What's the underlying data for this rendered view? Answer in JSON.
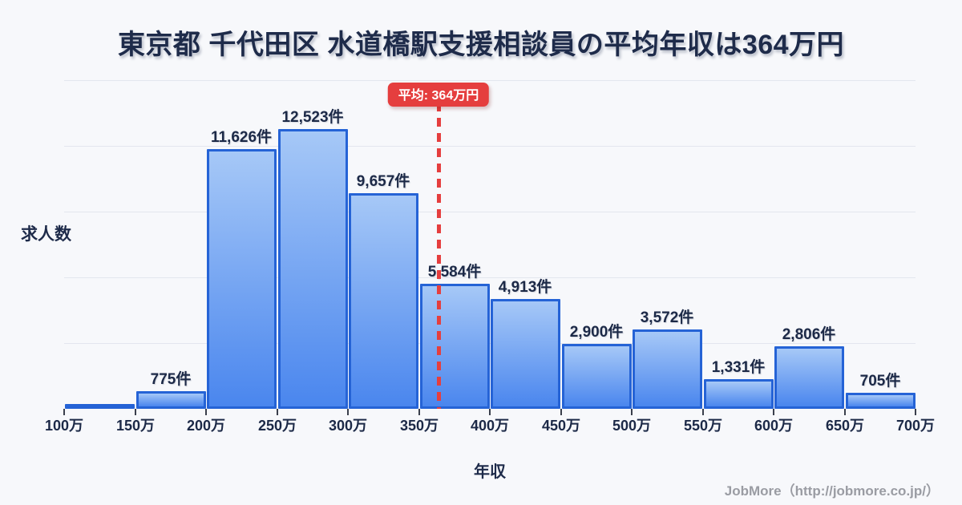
{
  "title": "東京都 千代田区 水道橋駅支援相談員の平均年収は364万円",
  "y_axis_label": "求人数",
  "x_axis_label": "年収",
  "footer_credit": "JobMore（http://jobmore.co.jp/）",
  "average_badge_label": "平均: 364万円",
  "colors": {
    "background": "#f7f8fb",
    "title_text": "#1e2b4a",
    "bar_fill_top": "#a6c8f7",
    "bar_fill_bottom": "#4a86ee",
    "bar_border": "#2563d6",
    "gridline": "#e3e6ee",
    "average_line": "#e53e3e",
    "footer_text": "#9a9ca3"
  },
  "chart_data": {
    "type": "bar",
    "title": "東京都 千代田区 水道橋駅支援相談員の平均年収は364万円",
    "xlabel": "年収",
    "ylabel": "求人数",
    "x_tick_labels": [
      "100万",
      "150万",
      "200万",
      "250万",
      "300万",
      "350万",
      "400万",
      "450万",
      "500万",
      "550万",
      "600万",
      "650万",
      "700万"
    ],
    "bin_ranges_man_yen": [
      [
        100,
        150
      ],
      [
        150,
        200
      ],
      [
        200,
        250
      ],
      [
        250,
        300
      ],
      [
        300,
        350
      ],
      [
        350,
        400
      ],
      [
        400,
        450
      ],
      [
        450,
        500
      ],
      [
        500,
        550
      ],
      [
        550,
        600
      ],
      [
        600,
        650
      ],
      [
        650,
        700
      ]
    ],
    "values": [
      100,
      775,
      11626,
      12523,
      9657,
      5584,
      4913,
      2900,
      3572,
      1331,
      2806,
      705
    ],
    "bar_labels": [
      "",
      "775件",
      "11,626件",
      "12,523件",
      "9,657件",
      "5,584件",
      "4,913件",
      "2,900件",
      "3,572件",
      "1,331件",
      "2,806件",
      "705件"
    ],
    "average_man_yen": 364,
    "xlim_man_yen": [
      100,
      700
    ],
    "ylim": [
      0,
      14720
    ],
    "grid": "horizontal",
    "legend": "none"
  }
}
